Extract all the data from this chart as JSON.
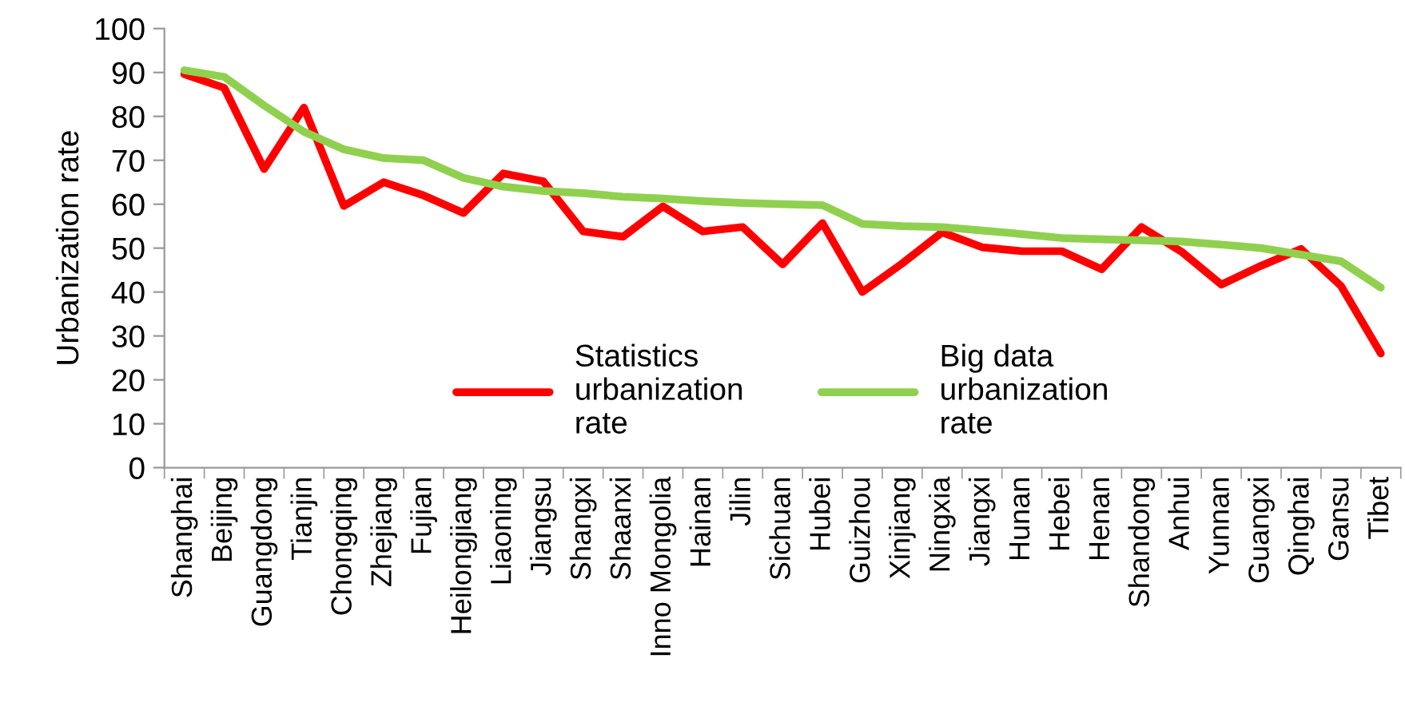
{
  "chart_data": {
    "type": "line",
    "ylabel": "Urbanization rate",
    "categories": [
      "Shanghai",
      "Beijing",
      "Guangdong",
      "Tianjin",
      "Chongqing",
      "Zhejiang",
      "Fujian",
      "Heilongjiang",
      "Liaoning",
      "Jiangsu",
      "Shangxi",
      "Shaanxi",
      "Inno Mongolia",
      "Hainan",
      "Jilin",
      "Sichuan",
      "Hubei",
      "Guizhou",
      "Xinjiang",
      "Ningxia",
      "Jiangxi",
      "Hunan",
      "Hebei",
      "Henan",
      "Shandong",
      "Anhui",
      "Yunnan",
      "Guangxi",
      "Qinghai",
      "Gansu",
      "Tibet"
    ],
    "series": [
      {
        "name": "Statistics\nurbanization\nrate",
        "color": "#ff0000",
        "values": [
          89.6,
          86.5,
          68,
          82,
          59.6,
          65,
          62,
          58,
          67,
          65.2,
          53.8,
          52.6,
          59.5,
          53.8,
          54.8,
          46.3,
          55.7,
          40,
          46.5,
          53.6,
          50.2,
          49.3,
          49.3,
          45.2,
          54.8,
          49.2,
          41.7,
          46,
          49.8,
          41.4,
          26
        ]
      },
      {
        "name": "Big data\nurbanization\nrate",
        "color": "#8fd14f",
        "values": [
          90.5,
          89,
          82.5,
          76.5,
          72.5,
          70.5,
          70,
          66,
          64,
          63,
          62.5,
          61.7,
          61.3,
          60.7,
          60.3,
          60,
          59.8,
          55.5,
          55,
          54.8,
          54,
          53.2,
          52.3,
          52,
          51.8,
          51.5,
          50.8,
          50,
          48.5,
          47,
          41
        ]
      }
    ],
    "ylim": [
      0,
      100
    ],
    "yticks": [
      0,
      10,
      20,
      30,
      40,
      50,
      60,
      70,
      80,
      90,
      100
    ],
    "legend": "bottom",
    "grid": false,
    "marker": "none",
    "line_style": "solid"
  }
}
